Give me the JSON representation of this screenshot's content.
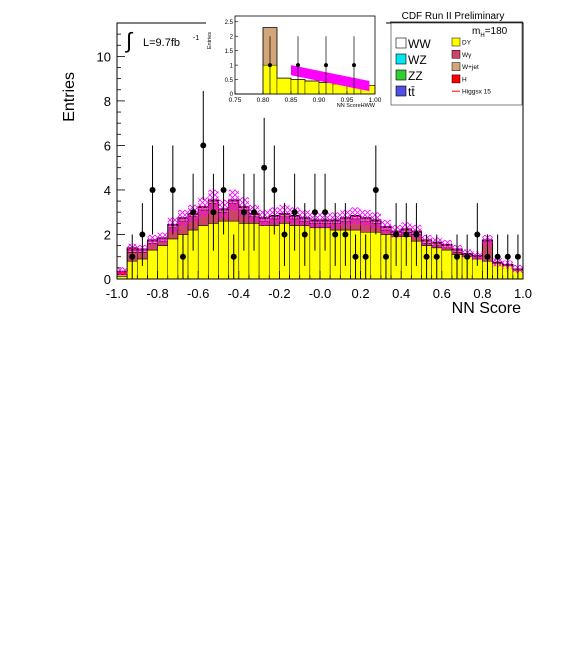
{
  "header": {
    "title": "CDF Run II Preliminary",
    "lumi_label": "L=9.7fb",
    "lumi_sup": "-1",
    "mass_label": "m",
    "mass_sub": "H",
    "mass_value": "=180"
  },
  "chart_data": {
    "type": "bar",
    "xlabel": "NN Score",
    "ylabel": "Entries",
    "xlim": [
      -1.0,
      1.0
    ],
    "ylim": [
      0,
      11.5
    ],
    "x_ticks": [
      "-1.0",
      "-0.8",
      "-0.6",
      "-0.4",
      "-0.2",
      "-0.0",
      "0.2",
      "0.4",
      "0.6",
      "0.8",
      "1.0"
    ],
    "y_ticks": [
      "0",
      "2",
      "4",
      "6",
      "8",
      "10"
    ],
    "bin_edges": [
      -1.0,
      -0.95,
      -0.9,
      -0.85,
      -0.8,
      -0.75,
      -0.7,
      -0.65,
      -0.6,
      -0.55,
      -0.5,
      -0.45,
      -0.4,
      -0.35,
      -0.3,
      -0.25,
      -0.2,
      -0.15,
      -0.1,
      -0.05,
      0.0,
      0.05,
      0.1,
      0.15,
      0.2,
      0.25,
      0.3,
      0.35,
      0.4,
      0.45,
      0.5,
      0.55,
      0.6,
      0.65,
      0.7,
      0.75,
      0.8,
      0.85,
      0.9,
      0.95,
      1.0
    ],
    "series": [
      {
        "name": "DY",
        "color": "#ffff00",
        "values": [
          0.1,
          0.8,
          0.9,
          1.3,
          1.5,
          1.8,
          2.0,
          2.2,
          2.4,
          2.5,
          2.6,
          2.6,
          2.5,
          2.5,
          2.4,
          2.4,
          2.5,
          2.4,
          2.4,
          2.3,
          2.3,
          2.2,
          2.2,
          2.2,
          2.1,
          2.1,
          2.0,
          1.9,
          1.9,
          1.7,
          1.5,
          1.4,
          1.3,
          1.1,
          1.0,
          0.9,
          0.8,
          0.7,
          0.6,
          0.4
        ]
      },
      {
        "name": "Wγ",
        "color": "#cc4466",
        "values": [
          0.0,
          0.4,
          0.3,
          0.3,
          0.2,
          0.5,
          0.6,
          0.6,
          0.7,
          0.9,
          0.4,
          0.8,
          0.6,
          0.3,
          0.2,
          0.3,
          0.3,
          0.3,
          0.2,
          0.2,
          0.2,
          0.3,
          0.4,
          0.5,
          0.5,
          0.4,
          0.2,
          0.1,
          0.2,
          0.3,
          0.1,
          0.1,
          0.1,
          0.1,
          0.1,
          0.1,
          0.9,
          0.0,
          0.0,
          0.0
        ]
      },
      {
        "name": "W+jet",
        "color": "#d2a679",
        "values": [
          0.1,
          0.1,
          0.1,
          0.1,
          0.1,
          0.1,
          0.1,
          0.1,
          0.1,
          0.1,
          0.1,
          0.1,
          0.1,
          0.1,
          0.1,
          0.1,
          0.1,
          0.1,
          0.1,
          0.1,
          0.1,
          0.1,
          0.1,
          0.1,
          0.1,
          0.1,
          0.1,
          0.1,
          0.1,
          0.1,
          0.1,
          0.1,
          0.1,
          0.1,
          0.0,
          0.0,
          0.0,
          0.0,
          0.0,
          0.0
        ]
      },
      {
        "name": "H",
        "color": "#ff0000",
        "values": [
          0.15,
          0.1,
          0.05,
          0.05,
          0.05,
          0.05,
          0.05,
          0.05,
          0.05,
          0.05,
          0.05,
          0.05,
          0.05,
          0.05,
          0.05,
          0.05,
          0.05,
          0.05,
          0.05,
          0.05,
          0.05,
          0.05,
          0.05,
          0.05,
          0.05,
          0.05,
          0.05,
          0.05,
          0.05,
          0.05,
          0.05,
          0.05,
          0.05,
          0.05,
          0.05,
          0.05,
          0.05,
          0.05,
          0.05,
          0.05
        ]
      }
    ],
    "data_points": [
      {
        "x": -0.925,
        "y": 1.0,
        "err": 1.0
      },
      {
        "x": -0.875,
        "y": 2.0,
        "err": 1.41
      },
      {
        "x": -0.825,
        "y": 4.0,
        "err": 2.0
      },
      {
        "x": -0.725,
        "y": 4.0,
        "err": 2.0
      },
      {
        "x": -0.675,
        "y": 1.0,
        "err": 1.0
      },
      {
        "x": -0.625,
        "y": 3.0,
        "err": 1.73
      },
      {
        "x": -0.575,
        "y": 6.0,
        "err": 2.45
      },
      {
        "x": -0.525,
        "y": 3.0,
        "err": 1.73
      },
      {
        "x": -0.475,
        "y": 4.0,
        "err": 2.0
      },
      {
        "x": -0.425,
        "y": 1.0,
        "err": 1.0
      },
      {
        "x": -0.375,
        "y": 3.0,
        "err": 1.73
      },
      {
        "x": -0.325,
        "y": 3.0,
        "err": 1.73
      },
      {
        "x": -0.275,
        "y": 5.0,
        "err": 2.24
      },
      {
        "x": -0.225,
        "y": 4.0,
        "err": 2.0
      },
      {
        "x": -0.175,
        "y": 2.0,
        "err": 1.41
      },
      {
        "x": -0.125,
        "y": 3.0,
        "err": 1.73
      },
      {
        "x": -0.075,
        "y": 2.0,
        "err": 1.41
      },
      {
        "x": -0.025,
        "y": 3.0,
        "err": 1.73
      },
      {
        "x": 0.025,
        "y": 3.0,
        "err": 1.73
      },
      {
        "x": 0.075,
        "y": 2.0,
        "err": 1.41
      },
      {
        "x": 0.125,
        "y": 2.0,
        "err": 1.41
      },
      {
        "x": 0.175,
        "y": 1.0,
        "err": 1.0
      },
      {
        "x": 0.225,
        "y": 1.0,
        "err": 1.0
      },
      {
        "x": 0.275,
        "y": 4.0,
        "err": 2.0
      },
      {
        "x": 0.325,
        "y": 1.0,
        "err": 1.0
      },
      {
        "x": 0.375,
        "y": 2.0,
        "err": 1.41
      },
      {
        "x": 0.425,
        "y": 2.0,
        "err": 1.41
      },
      {
        "x": 0.475,
        "y": 2.0,
        "err": 1.41
      },
      {
        "x": 0.525,
        "y": 1.0,
        "err": 1.0
      },
      {
        "x": 0.575,
        "y": 1.0,
        "err": 1.0
      },
      {
        "x": 0.675,
        "y": 1.0,
        "err": 1.0
      },
      {
        "x": 0.725,
        "y": 1.0,
        "err": 1.0
      },
      {
        "x": 0.775,
        "y": 2.0,
        "err": 1.41
      },
      {
        "x": 0.825,
        "y": 1.0,
        "err": 1.0
      },
      {
        "x": 0.875,
        "y": 1.0,
        "err": 1.0
      },
      {
        "x": 0.925,
        "y": 1.0,
        "err": 1.0
      },
      {
        "x": 0.975,
        "y": 1.0,
        "err": 1.0
      }
    ],
    "uncertainty_color": "#ff00ff",
    "inset": {
      "xlabel": "NN ScoreHWW",
      "ylabel": "Entries",
      "xlim": [
        0.75,
        1.0
      ],
      "ylim": [
        0,
        2.7
      ],
      "x_ticks": [
        "0.75",
        "0.80",
        "0.85",
        "0.90",
        "0.95",
        "1.00"
      ],
      "y_ticks": [
        "0",
        "0.5",
        "1",
        "1.5",
        "2",
        "2.5"
      ],
      "bin_edges": [
        0.75,
        0.8,
        0.825,
        0.85,
        0.875,
        0.9,
        0.925,
        0.95,
        0.975,
        1.0
      ],
      "series": [
        {
          "name": "DY",
          "color": "#ffff00",
          "values": [
            0.0,
            1.0,
            0.55,
            0.5,
            0.45,
            0.4,
            0.35,
            0.3,
            0.3
          ]
        },
        {
          "name": "W+jet",
          "color": "#d2a679",
          "values": [
            0.0,
            1.3,
            0.0,
            0.0,
            0.0,
            0.0,
            0.0,
            0.0,
            0.0
          ]
        }
      ],
      "signal": {
        "x0": 0.85,
        "x1": 0.99,
        "y0": 1.0,
        "y1": 0.45
      },
      "data_points": [
        {
          "x": 0.8125,
          "y": 1.0,
          "err": 1.0
        },
        {
          "x": 0.8625,
          "y": 1.0,
          "err": 1.0
        },
        {
          "x": 0.9125,
          "y": 1.0,
          "err": 1.0
        },
        {
          "x": 0.9625,
          "y": 1.0,
          "err": 1.0
        }
      ]
    },
    "legend": {
      "placement": "top-right",
      "entries": [
        {
          "label": "WW",
          "color": "#ffffff",
          "size": "large"
        },
        {
          "label": "DY",
          "color": "#ffff00",
          "size": "small"
        },
        {
          "label": "WZ",
          "color": "#00e5ee",
          "size": "large"
        },
        {
          "label": "Wγ",
          "color": "#cc4466",
          "size": "small"
        },
        {
          "label": "ZZ",
          "color": "#33cc33",
          "size": "large"
        },
        {
          "label": "W+jet",
          "color": "#d2a679",
          "size": "small"
        },
        {
          "label": "tt̄",
          "color": "#5050dd",
          "size": "large"
        },
        {
          "label": "H",
          "color": "#ff0000",
          "size": "small"
        },
        {
          "label": "Higgsx 15",
          "color": "#ff0000",
          "size": "small",
          "line": true
        }
      ]
    }
  }
}
